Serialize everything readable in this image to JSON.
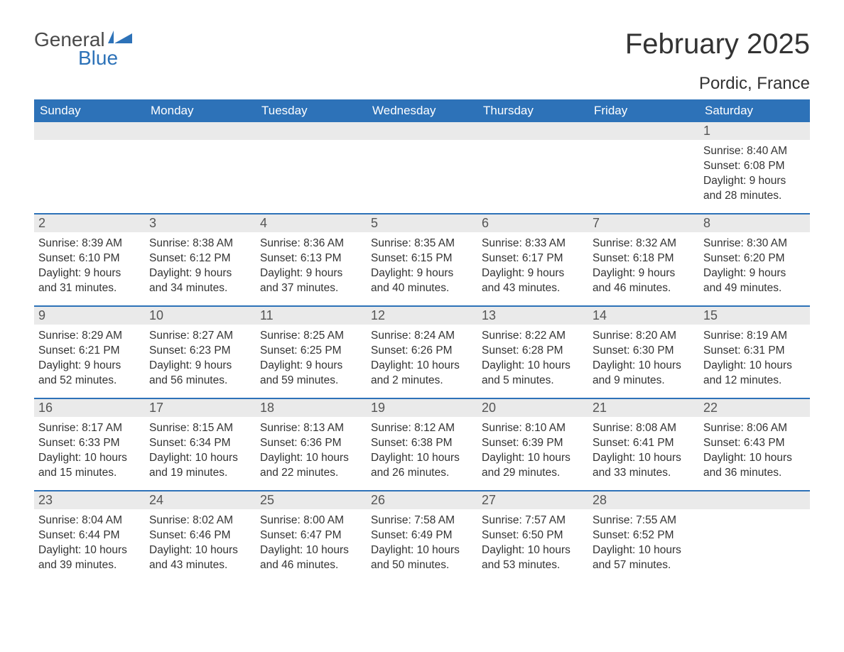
{
  "logo": {
    "general": "General",
    "blue": "Blue",
    "mark_color": "#2d72b8"
  },
  "title": "February 2025",
  "location": "Pordic, France",
  "colors": {
    "header_bg": "#2d72b8",
    "header_text": "#ffffff",
    "daynum_bg": "#eaeaea",
    "body_text": "#333333",
    "page_bg": "#ffffff",
    "separator": "#2d72b8"
  },
  "days_of_week": [
    "Sunday",
    "Monday",
    "Tuesday",
    "Wednesday",
    "Thursday",
    "Friday",
    "Saturday"
  ],
  "weeks": [
    [
      null,
      null,
      null,
      null,
      null,
      null,
      {
        "n": "1",
        "sunrise": "Sunrise: 8:40 AM",
        "sunset": "Sunset: 6:08 PM",
        "day1": "Daylight: 9 hours",
        "day2": "and 28 minutes."
      }
    ],
    [
      {
        "n": "2",
        "sunrise": "Sunrise: 8:39 AM",
        "sunset": "Sunset: 6:10 PM",
        "day1": "Daylight: 9 hours",
        "day2": "and 31 minutes."
      },
      {
        "n": "3",
        "sunrise": "Sunrise: 8:38 AM",
        "sunset": "Sunset: 6:12 PM",
        "day1": "Daylight: 9 hours",
        "day2": "and 34 minutes."
      },
      {
        "n": "4",
        "sunrise": "Sunrise: 8:36 AM",
        "sunset": "Sunset: 6:13 PM",
        "day1": "Daylight: 9 hours",
        "day2": "and 37 minutes."
      },
      {
        "n": "5",
        "sunrise": "Sunrise: 8:35 AM",
        "sunset": "Sunset: 6:15 PM",
        "day1": "Daylight: 9 hours",
        "day2": "and 40 minutes."
      },
      {
        "n": "6",
        "sunrise": "Sunrise: 8:33 AM",
        "sunset": "Sunset: 6:17 PM",
        "day1": "Daylight: 9 hours",
        "day2": "and 43 minutes."
      },
      {
        "n": "7",
        "sunrise": "Sunrise: 8:32 AM",
        "sunset": "Sunset: 6:18 PM",
        "day1": "Daylight: 9 hours",
        "day2": "and 46 minutes."
      },
      {
        "n": "8",
        "sunrise": "Sunrise: 8:30 AM",
        "sunset": "Sunset: 6:20 PM",
        "day1": "Daylight: 9 hours",
        "day2": "and 49 minutes."
      }
    ],
    [
      {
        "n": "9",
        "sunrise": "Sunrise: 8:29 AM",
        "sunset": "Sunset: 6:21 PM",
        "day1": "Daylight: 9 hours",
        "day2": "and 52 minutes."
      },
      {
        "n": "10",
        "sunrise": "Sunrise: 8:27 AM",
        "sunset": "Sunset: 6:23 PM",
        "day1": "Daylight: 9 hours",
        "day2": "and 56 minutes."
      },
      {
        "n": "11",
        "sunrise": "Sunrise: 8:25 AM",
        "sunset": "Sunset: 6:25 PM",
        "day1": "Daylight: 9 hours",
        "day2": "and 59 minutes."
      },
      {
        "n": "12",
        "sunrise": "Sunrise: 8:24 AM",
        "sunset": "Sunset: 6:26 PM",
        "day1": "Daylight: 10 hours",
        "day2": "and 2 minutes."
      },
      {
        "n": "13",
        "sunrise": "Sunrise: 8:22 AM",
        "sunset": "Sunset: 6:28 PM",
        "day1": "Daylight: 10 hours",
        "day2": "and 5 minutes."
      },
      {
        "n": "14",
        "sunrise": "Sunrise: 8:20 AM",
        "sunset": "Sunset: 6:30 PM",
        "day1": "Daylight: 10 hours",
        "day2": "and 9 minutes."
      },
      {
        "n": "15",
        "sunrise": "Sunrise: 8:19 AM",
        "sunset": "Sunset: 6:31 PM",
        "day1": "Daylight: 10 hours",
        "day2": "and 12 minutes."
      }
    ],
    [
      {
        "n": "16",
        "sunrise": "Sunrise: 8:17 AM",
        "sunset": "Sunset: 6:33 PM",
        "day1": "Daylight: 10 hours",
        "day2": "and 15 minutes."
      },
      {
        "n": "17",
        "sunrise": "Sunrise: 8:15 AM",
        "sunset": "Sunset: 6:34 PM",
        "day1": "Daylight: 10 hours",
        "day2": "and 19 minutes."
      },
      {
        "n": "18",
        "sunrise": "Sunrise: 8:13 AM",
        "sunset": "Sunset: 6:36 PM",
        "day1": "Daylight: 10 hours",
        "day2": "and 22 minutes."
      },
      {
        "n": "19",
        "sunrise": "Sunrise: 8:12 AM",
        "sunset": "Sunset: 6:38 PM",
        "day1": "Daylight: 10 hours",
        "day2": "and 26 minutes."
      },
      {
        "n": "20",
        "sunrise": "Sunrise: 8:10 AM",
        "sunset": "Sunset: 6:39 PM",
        "day1": "Daylight: 10 hours",
        "day2": "and 29 minutes."
      },
      {
        "n": "21",
        "sunrise": "Sunrise: 8:08 AM",
        "sunset": "Sunset: 6:41 PM",
        "day1": "Daylight: 10 hours",
        "day2": "and 33 minutes."
      },
      {
        "n": "22",
        "sunrise": "Sunrise: 8:06 AM",
        "sunset": "Sunset: 6:43 PM",
        "day1": "Daylight: 10 hours",
        "day2": "and 36 minutes."
      }
    ],
    [
      {
        "n": "23",
        "sunrise": "Sunrise: 8:04 AM",
        "sunset": "Sunset: 6:44 PM",
        "day1": "Daylight: 10 hours",
        "day2": "and 39 minutes."
      },
      {
        "n": "24",
        "sunrise": "Sunrise: 8:02 AM",
        "sunset": "Sunset: 6:46 PM",
        "day1": "Daylight: 10 hours",
        "day2": "and 43 minutes."
      },
      {
        "n": "25",
        "sunrise": "Sunrise: 8:00 AM",
        "sunset": "Sunset: 6:47 PM",
        "day1": "Daylight: 10 hours",
        "day2": "and 46 minutes."
      },
      {
        "n": "26",
        "sunrise": "Sunrise: 7:58 AM",
        "sunset": "Sunset: 6:49 PM",
        "day1": "Daylight: 10 hours",
        "day2": "and 50 minutes."
      },
      {
        "n": "27",
        "sunrise": "Sunrise: 7:57 AM",
        "sunset": "Sunset: 6:50 PM",
        "day1": "Daylight: 10 hours",
        "day2": "and 53 minutes."
      },
      {
        "n": "28",
        "sunrise": "Sunrise: 7:55 AM",
        "sunset": "Sunset: 6:52 PM",
        "day1": "Daylight: 10 hours",
        "day2": "and 57 minutes."
      },
      null
    ]
  ]
}
